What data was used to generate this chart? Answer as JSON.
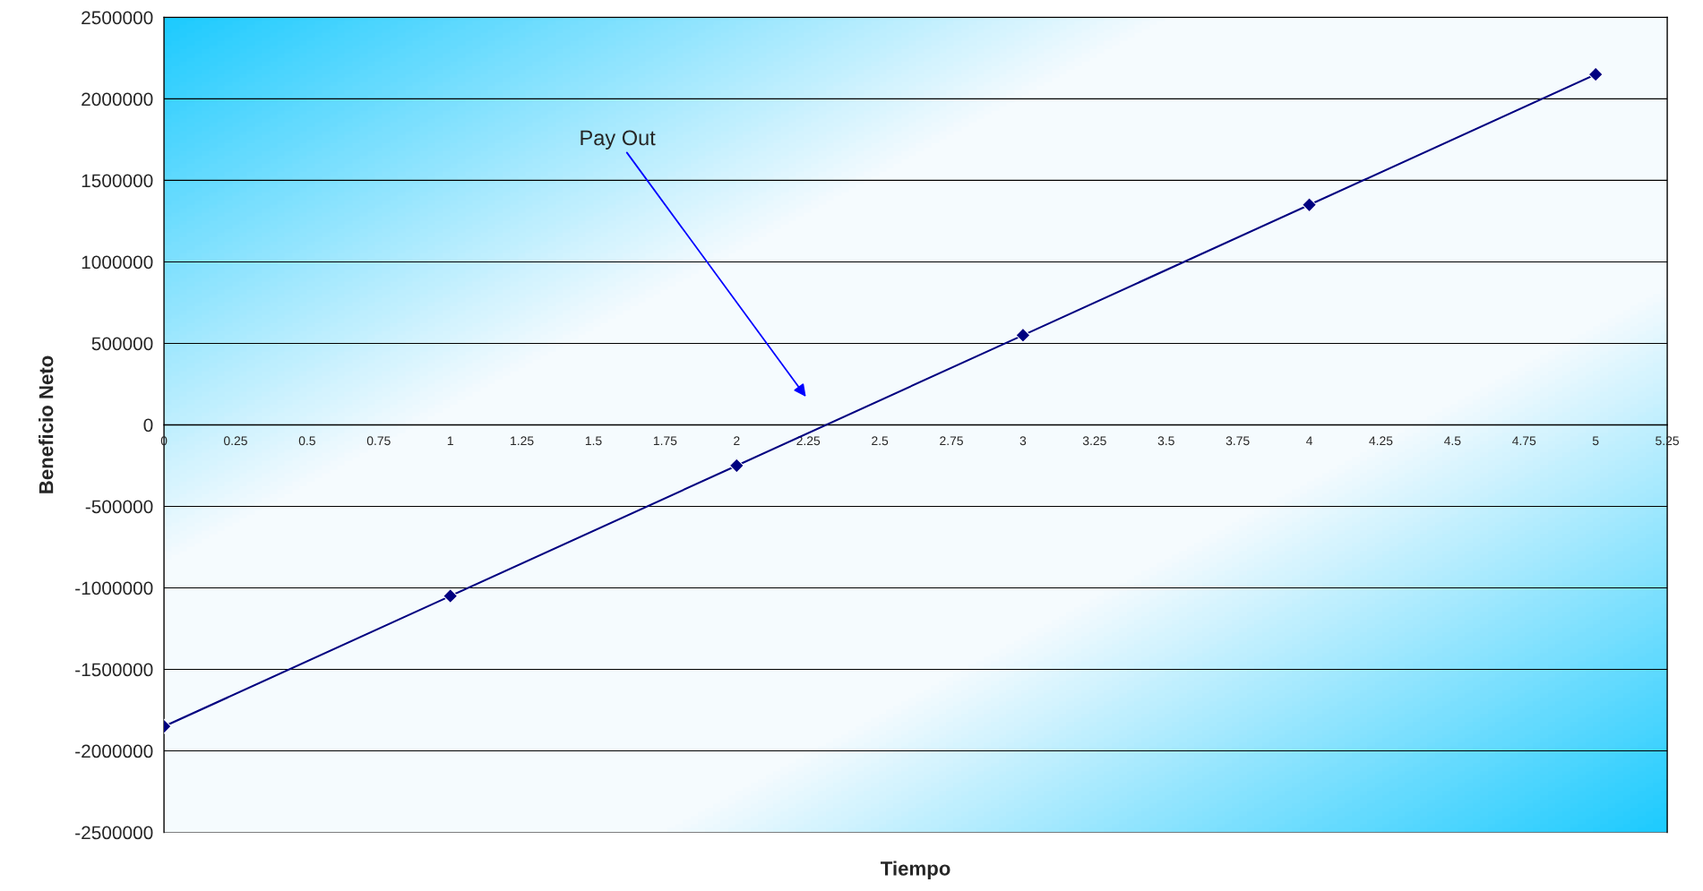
{
  "chart_data": {
    "type": "line",
    "xlabel": "Tiempo",
    "ylabel": "Beneficio Neto",
    "x": [
      0,
      1,
      2,
      3,
      4,
      5
    ],
    "series": [
      {
        "color": "#000080",
        "values": [
          -1850000,
          -1050000,
          -250000,
          550000,
          1350000,
          2150000
        ]
      }
    ],
    "marker": "diamond",
    "line_style": "solid",
    "grid": "y",
    "legend": false,
    "xlim": [
      0,
      5.25
    ],
    "xticks": [
      0,
      0.25,
      0.5,
      0.75,
      1,
      1.25,
      1.5,
      1.75,
      2,
      2.25,
      2.5,
      2.75,
      3,
      3.25,
      3.5,
      3.75,
      4,
      4.25,
      4.5,
      4.75,
      5,
      5.25
    ],
    "ylim": [
      -2500000,
      2500000
    ],
    "yticks": [
      -2500000,
      -2000000,
      -1500000,
      -1000000,
      -500000,
      0,
      500000,
      1000000,
      1500000,
      2000000,
      2500000
    ],
    "annotations": [
      "Pay Out"
    ]
  }
}
